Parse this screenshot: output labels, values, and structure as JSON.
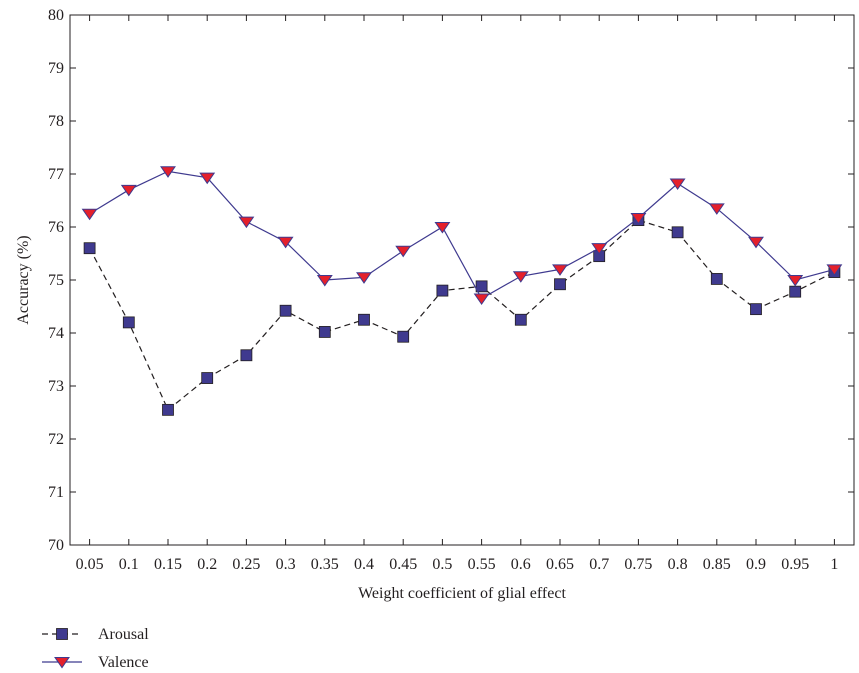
{
  "chart_data": {
    "type": "line",
    "title": "",
    "xlabel": "Weight coefficient of glial effect",
    "ylabel": "Accuracy (%)",
    "categories": [
      "0.05",
      "0.1",
      "0.15",
      "0.2",
      "0.25",
      "0.3",
      "0.35",
      "0.4",
      "0.45",
      "0.5",
      "0.55",
      "0.6",
      "0.65",
      "0.7",
      "0.75",
      "0.8",
      "0.85",
      "0.9",
      "0.95",
      "1"
    ],
    "ylim": [
      70,
      80
    ],
    "yticks": [
      "70",
      "71",
      "72",
      "73",
      "74",
      "75",
      "76",
      "77",
      "78",
      "79",
      "80"
    ],
    "grid": false,
    "legend_position": "bottom-left, below axis",
    "series": [
      {
        "name": "Arousal",
        "line_color": "#231f20",
        "line_style": "dashed",
        "marker": "square",
        "marker_color": "#3f3a8f",
        "values": [
          75.6,
          74.2,
          72.55,
          73.15,
          73.58,
          74.42,
          74.02,
          74.25,
          73.93,
          74.8,
          74.88,
          74.25,
          74.92,
          75.45,
          76.13,
          75.9,
          75.02,
          74.45,
          74.78,
          75.15
        ]
      },
      {
        "name": "Valence",
        "line_color": "#3f3a8f",
        "line_style": "solid",
        "marker": "triangle-down",
        "marker_color": "#e4202b",
        "values": [
          76.25,
          76.7,
          77.05,
          76.93,
          76.1,
          75.72,
          75.0,
          75.05,
          75.55,
          76.0,
          74.65,
          75.07,
          75.2,
          75.6,
          76.17,
          76.82,
          76.35,
          75.72,
          75.0,
          75.2
        ]
      }
    ]
  }
}
